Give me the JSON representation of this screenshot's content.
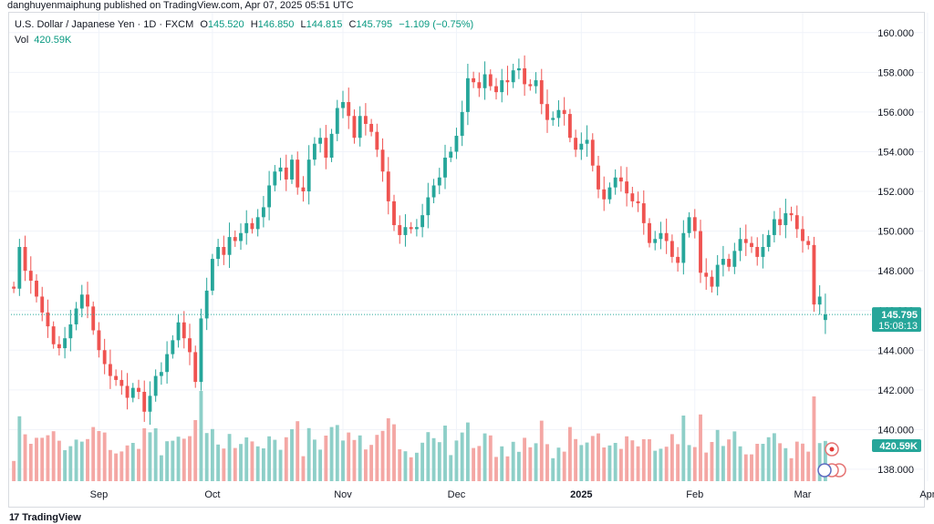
{
  "header": {
    "published": "danghuyenmaiphung published on TradingView.com, Apr 07, 2025 05:51 UTC"
  },
  "legend": {
    "symbol": "U.S. Dollar / Japanese Yen · 1D · FXCM",
    "o_label": "O",
    "o_value": "145.520",
    "h_label": "H",
    "h_value": "146.850",
    "l_label": "L",
    "l_value": "144.815",
    "c_label": "C",
    "c_value": "145.795",
    "change": "−1.109 (−0.75%)",
    "vol_label": "Vol",
    "vol_value": "420.59K"
  },
  "price_tag": {
    "value": "145.795",
    "countdown": "15:08:13"
  },
  "volume_tag": "420.59K",
  "footer": {
    "brand": "TradingView",
    "logo": "17"
  },
  "colors": {
    "up": "#26a69a",
    "down": "#ef5350",
    "up_vol": "#8ecfc8",
    "down_vol": "#f4a7a4",
    "grid": "#f0f3fa"
  },
  "chart_data": {
    "type": "candlestick",
    "symbol": "USDJPY",
    "timeframe": "1D",
    "y_ticks": [
      "160.000",
      "158.000",
      "156.000",
      "154.000",
      "152.000",
      "150.000",
      "148.000",
      "146.000",
      "144.000",
      "142.000",
      "140.000",
      "138.000"
    ],
    "ylim": [
      137.4,
      161.0
    ],
    "x_ticks": [
      {
        "label": "Sep",
        "index": 15
      },
      {
        "label": "Oct",
        "index": 35
      },
      {
        "label": "Nov",
        "index": 58
      },
      {
        "label": "Dec",
        "index": 78
      },
      {
        "label": "2025",
        "index": 100
      },
      {
        "label": "Feb",
        "index": 120
      },
      {
        "label": "Mar",
        "index": 139
      },
      {
        "label": "Apr",
        "index": 161
      }
    ],
    "last_price": 145.795,
    "closes": [
      147.1,
      149.2,
      148.0,
      147.5,
      146.7,
      145.9,
      145.2,
      144.3,
      144.1,
      144.6,
      145.3,
      146.1,
      146.8,
      146.2,
      145.0,
      144.0,
      143.3,
      142.7,
      142.5,
      142.2,
      141.6,
      142.1,
      141.9,
      140.9,
      141.7,
      142.7,
      142.9,
      143.8,
      144.5,
      145.4,
      144.6,
      143.9,
      142.4,
      145.6,
      147.0,
      148.6,
      149.2,
      148.8,
      149.7,
      149.5,
      149.9,
      150.4,
      150.1,
      150.7,
      151.2,
      152.3,
      153.0,
      153.2,
      152.6,
      153.6,
      152.2,
      152.0,
      153.6,
      154.4,
      154.7,
      153.7,
      154.9,
      156.2,
      156.5,
      155.8,
      154.7,
      155.8,
      155.4,
      155.0,
      154.1,
      153.0,
      151.5,
      150.3,
      149.8,
      150.2,
      150.1,
      150.2,
      150.8,
      151.7,
      152.3,
      152.7,
      153.7,
      154.0,
      154.8,
      156.0,
      157.7,
      157.5,
      157.2,
      157.9,
      157.3,
      157.0,
      157.6,
      157.5,
      158.1,
      158.2,
      157.4,
      157.3,
      157.6,
      156.4,
      155.6,
      155.7,
      156.1,
      155.9,
      154.7,
      154.1,
      154.4,
      154.6,
      153.3,
      152.1,
      151.6,
      152.2,
      152.7,
      152.5,
      151.9,
      151.5,
      151.4,
      150.4,
      149.4,
      149.6,
      149.9,
      149.5,
      148.7,
      148.4,
      149.9,
      150.7,
      150.0,
      147.9,
      147.7,
      147.2,
      148.3,
      148.6,
      148.2,
      149.0,
      149.6,
      149.4,
      149.2,
      148.7,
      149.2,
      149.8,
      150.6,
      150.3,
      150.9,
      150.8,
      150.1,
      149.5,
      149.3,
      146.3,
      146.7,
      145.8
    ]
  }
}
